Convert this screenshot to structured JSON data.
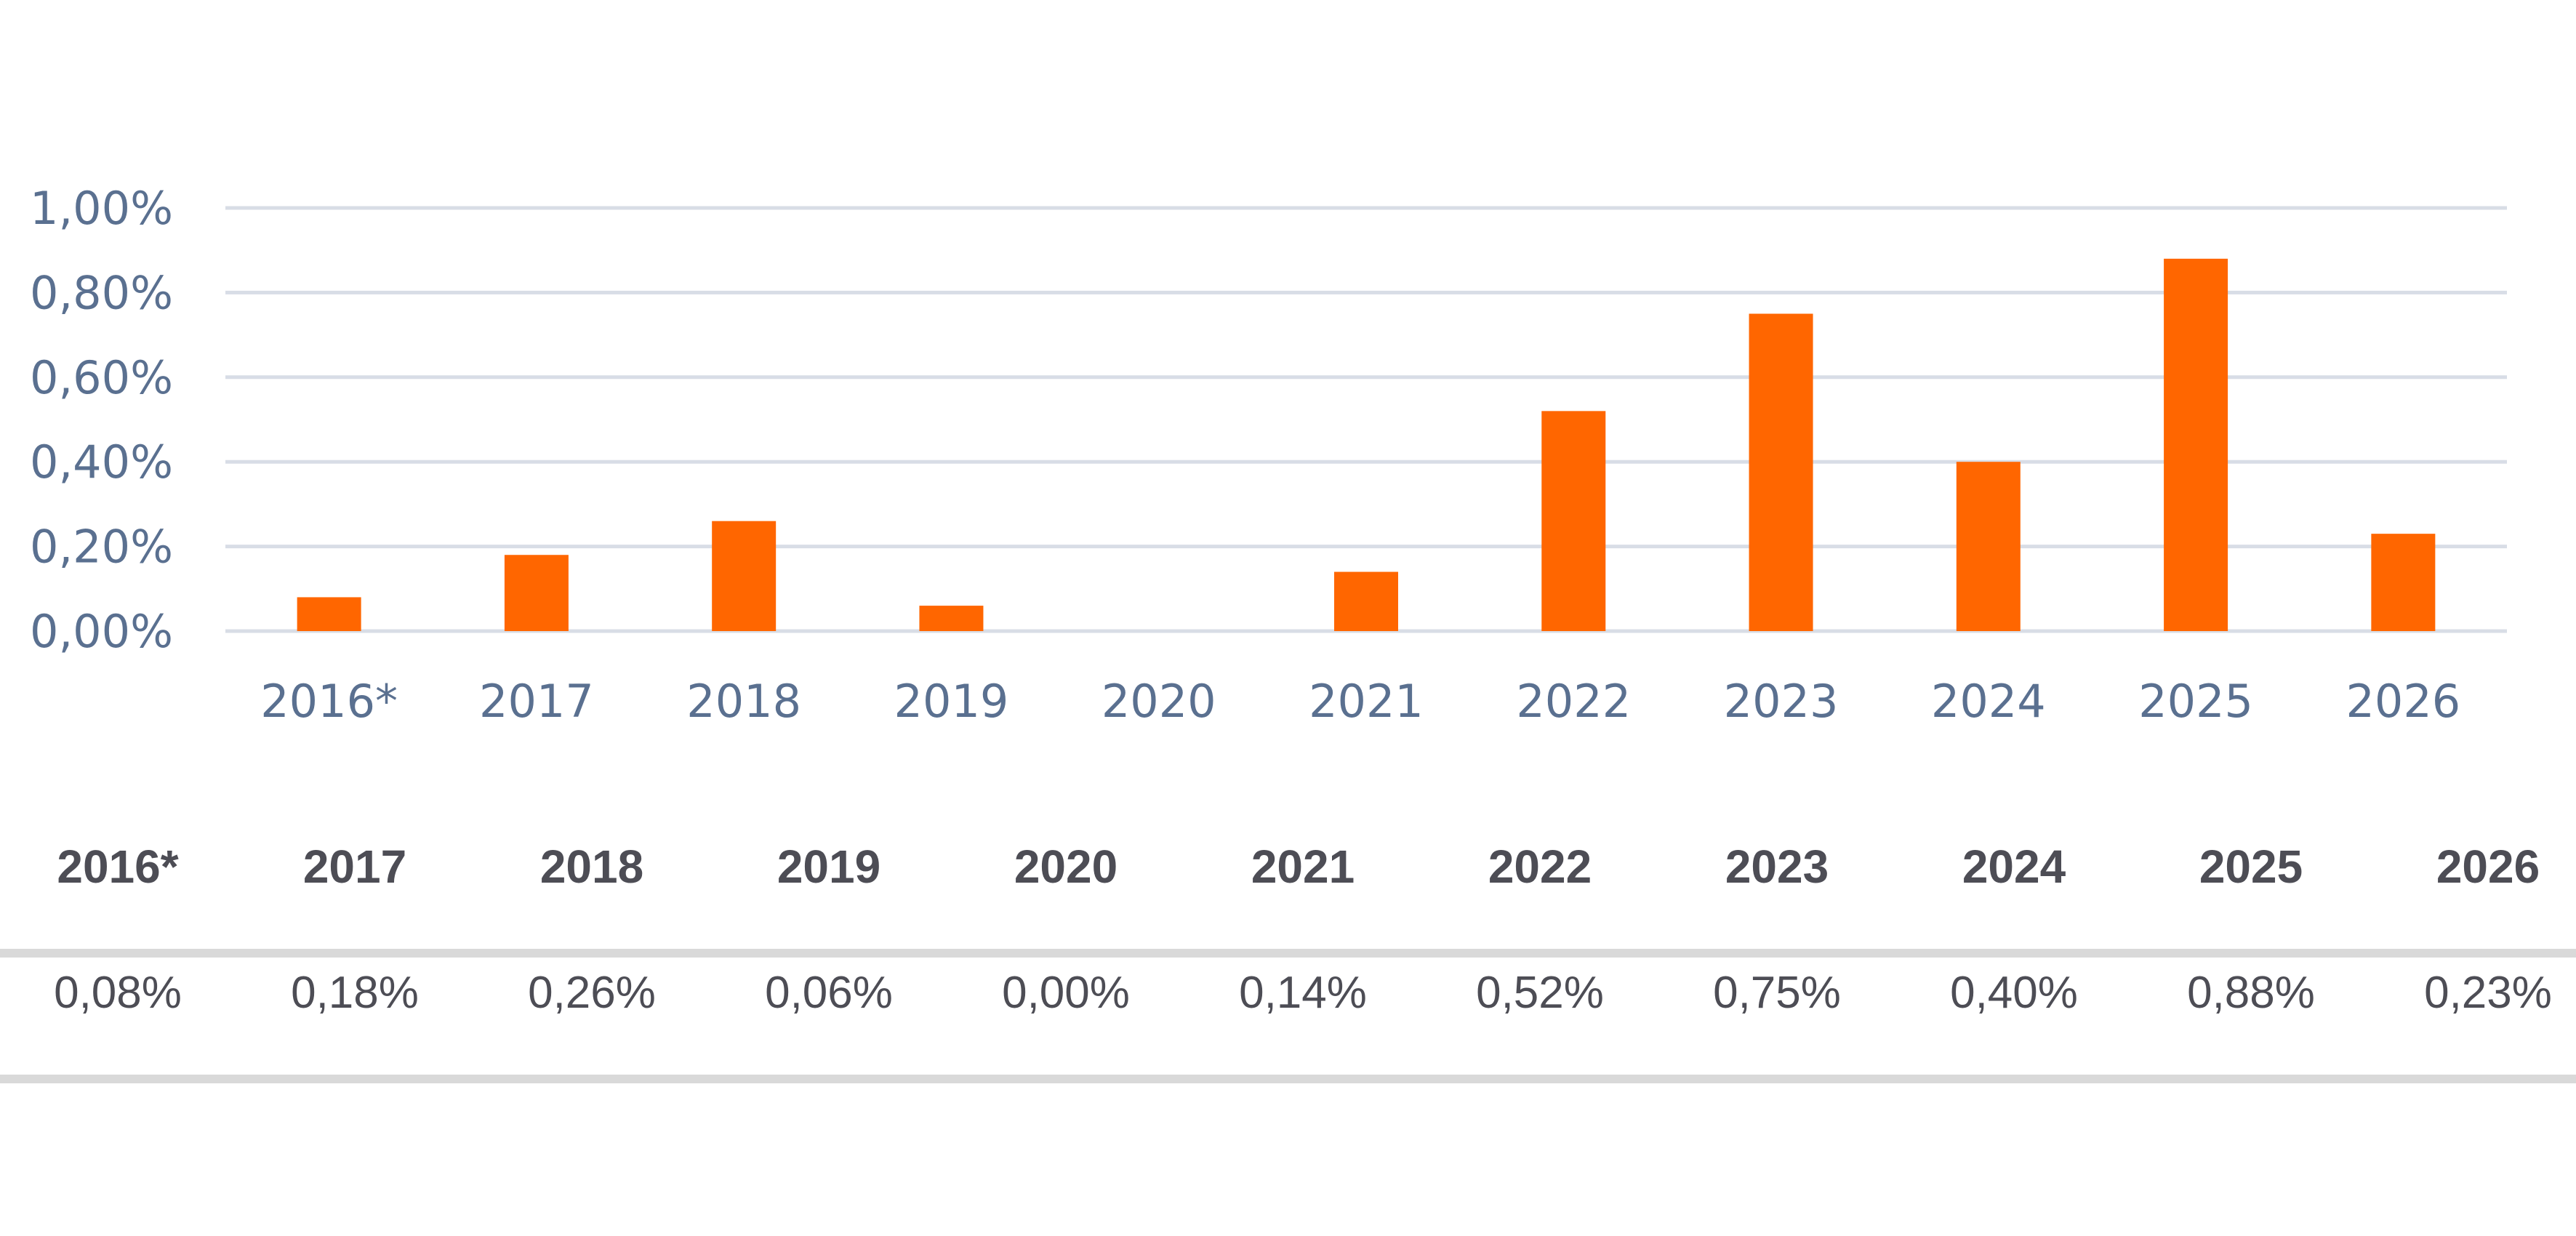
{
  "chart_data": {
    "type": "bar",
    "categories": [
      "2016*",
      "2017",
      "2018",
      "2019",
      "2020",
      "2021",
      "2022",
      "2023",
      "2024",
      "2025",
      "2026"
    ],
    "values": [
      0.08,
      0.18,
      0.26,
      0.06,
      0.0,
      0.14,
      0.52,
      0.75,
      0.4,
      0.88,
      0.23
    ],
    "ylim": [
      0,
      1.0
    ],
    "yticks": [
      "0,00%",
      "0,20%",
      "0,40%",
      "0,60%",
      "0,80%",
      "1,00%"
    ],
    "ytick_values": [
      0,
      0.2,
      0.4,
      0.6,
      0.8,
      1.0
    ],
    "grid": true,
    "colors": {
      "bar": "#ff6600",
      "tick": "#5a7090",
      "grid": "#d8dde6"
    }
  },
  "table": {
    "headers": [
      "2016*",
      "2017",
      "2018",
      "2019",
      "2020",
      "2021",
      "2022",
      "2023",
      "2024",
      "2025",
      "2026"
    ],
    "values": [
      "0,08%",
      "0,18%",
      "0,26%",
      "0,06%",
      "0,00%",
      "0,14%",
      "0,52%",
      "0,75%",
      "0,40%",
      "0,88%",
      "0,23%"
    ]
  }
}
